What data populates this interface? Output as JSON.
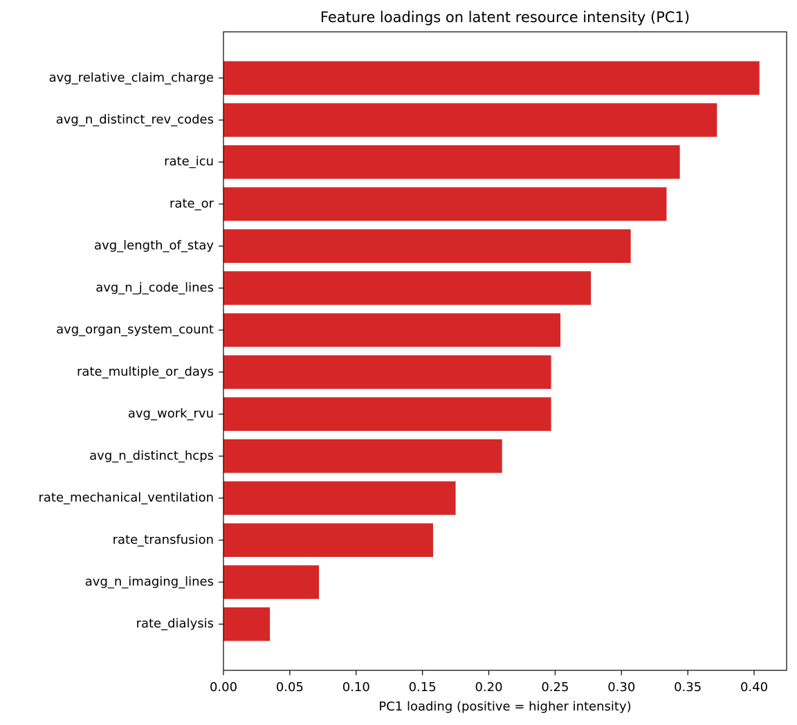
{
  "chart_data": {
    "type": "barh",
    "title": "Feature loadings on latent resource intensity (PC1)",
    "xlabel": "PC1 loading (positive = higher intensity)",
    "categories": [
      "avg_relative_claim_charge",
      "avg_n_distinct_rev_codes",
      "rate_icu",
      "rate_or",
      "avg_length_of_stay",
      "avg_n_j_code_lines",
      "avg_organ_system_count",
      "rate_multiple_or_days",
      "avg_work_rvu",
      "avg_n_distinct_hcps",
      "rate_mechanical_ventilation",
      "rate_transfusion",
      "avg_n_imaging_lines",
      "rate_dialysis"
    ],
    "values": [
      0.404,
      0.372,
      0.344,
      0.334,
      0.307,
      0.277,
      0.254,
      0.247,
      0.247,
      0.21,
      0.175,
      0.158,
      0.072,
      0.035
    ],
    "color": "#d62728",
    "xlim": [
      0,
      0.4245
    ],
    "xticks": [
      {
        "value": 0,
        "label": "0.00"
      },
      {
        "value": 0.05,
        "label": "0.05"
      },
      {
        "value": 0.1,
        "label": "0.10"
      },
      {
        "value": 0.15,
        "label": "0.15"
      },
      {
        "value": 0.2,
        "label": "0.20"
      },
      {
        "value": 0.25,
        "label": "0.25"
      },
      {
        "value": 0.3,
        "label": "0.30"
      },
      {
        "value": 0.35,
        "label": "0.35"
      },
      {
        "value": 0.4,
        "label": "0.40"
      }
    ],
    "grid": false
  }
}
